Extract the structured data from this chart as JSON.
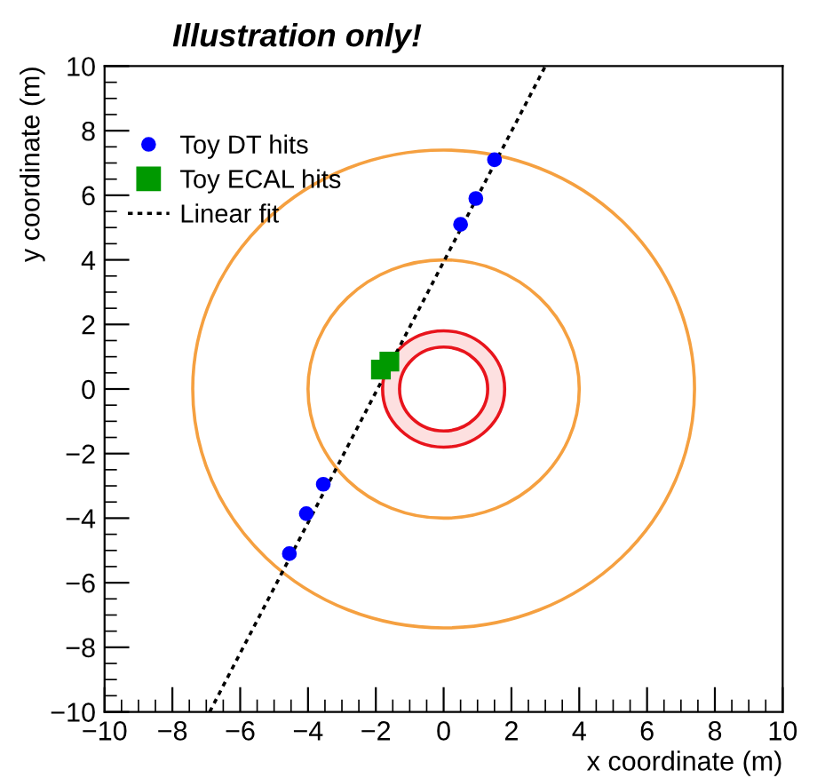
{
  "chart_data": {
    "type": "scatter",
    "title": "Illustration only!",
    "xlabel": "x coordinate (m)",
    "ylabel": "y coordinate (m)",
    "xlim": [
      -10,
      10
    ],
    "ylim": [
      -10,
      10
    ],
    "xticks": [
      -10,
      -8,
      -6,
      -4,
      -2,
      0,
      2,
      4,
      6,
      8,
      10
    ],
    "yticks": [
      -10,
      -8,
      -6,
      -4,
      -2,
      0,
      2,
      4,
      6,
      8,
      10
    ],
    "grid": false,
    "legend": "top left",
    "series": [
      {
        "name": "Toy DT hits",
        "color": "#0000ff",
        "marker": "circle",
        "x": [
          1.5,
          0.95,
          0.5,
          -3.55,
          -4.05,
          -4.55
        ],
        "values": [
          7.1,
          5.9,
          5.1,
          -2.95,
          -3.86,
          -5.1
        ]
      },
      {
        "name": "Toy ECAL hits",
        "color": "#009900",
        "marker": "square",
        "x": [
          -1.85,
          -1.6
        ],
        "values": [
          0.6,
          0.85
        ]
      },
      {
        "type": "line",
        "name": "Linear fit",
        "color": "#000000",
        "marker": "none",
        "line_style": "dotted",
        "x": [
          -6.9,
          3.0
        ],
        "values": [
          -10,
          10
        ]
      }
    ]
  }
}
